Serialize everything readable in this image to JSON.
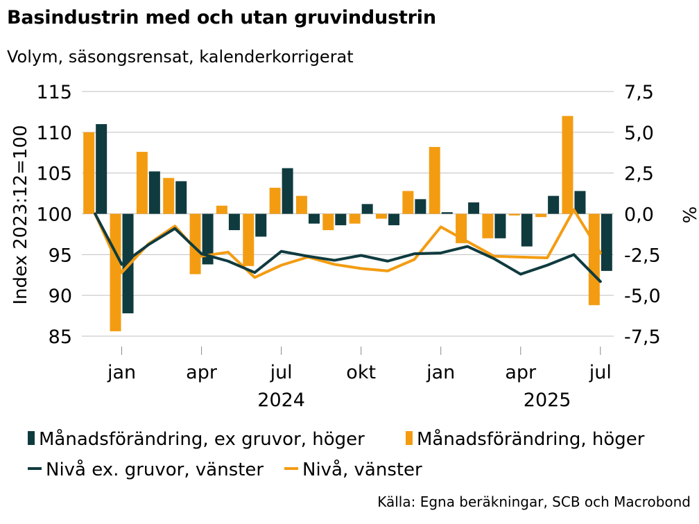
{
  "chart_data": {
    "type": "bar+line",
    "title": "Basindustrin med och utan gruvindustrin",
    "subtitle": "Volym, säsongsrensat, kalenderkorrigerat",
    "ylabel_left": "Index 2023:12=100",
    "ylabel_right": "%",
    "ylim_left": [
      85,
      115
    ],
    "ylim_right": [
      -7.5,
      7.5
    ],
    "yticks_left": [
      "115",
      "110",
      "105",
      "100",
      "95",
      "90",
      "85"
    ],
    "yticks_right": [
      "7,5",
      "5,0",
      "2,5",
      "0,0",
      "-2,5",
      "-5,0",
      "-7,5"
    ],
    "months": [
      "2023-12",
      "2024-01",
      "2024-02",
      "2024-03",
      "2024-04",
      "2024-05",
      "2024-06",
      "2024-07",
      "2024-08",
      "2024-09",
      "2024-10",
      "2024-11",
      "2024-12",
      "2025-01",
      "2025-02",
      "2025-03",
      "2025-04",
      "2025-05",
      "2025-06",
      "2025-07"
    ],
    "x_month_labels": [
      {
        "label": "jan",
        "index": 1
      },
      {
        "label": "apr",
        "index": 4
      },
      {
        "label": "jul",
        "index": 7
      },
      {
        "label": "okt",
        "index": 10
      },
      {
        "label": "jan",
        "index": 13
      },
      {
        "label": "apr",
        "index": 16
      },
      {
        "label": "jul",
        "index": 19
      }
    ],
    "x_year_labels": [
      {
        "label": "2024",
        "index": 7
      },
      {
        "label": "2025",
        "index": 17
      }
    ],
    "bar_series": [
      {
        "name": "Månadsförändring, ex gruvor, höger",
        "color": "#0f3b3f",
        "values": [
          5.5,
          -6.1,
          2.6,
          2.0,
          -3.1,
          -1.0,
          -1.4,
          2.8,
          -0.6,
          -0.7,
          0.6,
          -0.7,
          0.9,
          0.1,
          0.7,
          -1.5,
          -2.0,
          1.1,
          1.4,
          -3.5
        ]
      },
      {
        "name": "Månadsförändring, höger",
        "color": "#f39c12",
        "values": [
          5.0,
          -7.2,
          3.8,
          2.2,
          -3.7,
          0.5,
          -3.2,
          1.6,
          1.1,
          -1.0,
          -0.6,
          -0.3,
          1.4,
          4.1,
          -1.8,
          -1.5,
          -0.1,
          -0.2,
          6.0,
          -5.6
        ]
      }
    ],
    "line_series": [
      {
        "name": "Nivå ex. gruvor, vänster",
        "color": "#0f3b3f",
        "values": [
          100,
          93.8,
          96.2,
          98.2,
          95.1,
          94.2,
          92.8,
          95.4,
          94.8,
          94.3,
          94.9,
          94.2,
          95.1,
          95.2,
          96.0,
          94.5,
          92.6,
          93.7,
          95.0,
          91.7
        ]
      },
      {
        "name": "Nivå, vänster",
        "color": "#f39c12",
        "values": [
          100,
          92.8,
          96.3,
          98.5,
          94.8,
          95.3,
          92.2,
          93.7,
          94.7,
          93.8,
          93.3,
          93.0,
          94.4,
          98.4,
          96.6,
          94.8,
          94.7,
          94.6,
          100.5,
          95.2
        ]
      }
    ],
    "legend": [
      {
        "label": "Månadsförändring, ex gruvor, höger",
        "kind": "bar",
        "color": "#0f3b3f"
      },
      {
        "label": "Månadsförändring, höger",
        "kind": "bar",
        "color": "#f39c12"
      },
      {
        "label": "Nivå ex. gruvor, vänster",
        "kind": "line",
        "color": "#0f3b3f"
      },
      {
        "label": "Nivå, vänster",
        "kind": "line",
        "color": "#f39c12"
      }
    ],
    "source": "Källa: Egna beräkningar, SCB och Macrobond"
  }
}
